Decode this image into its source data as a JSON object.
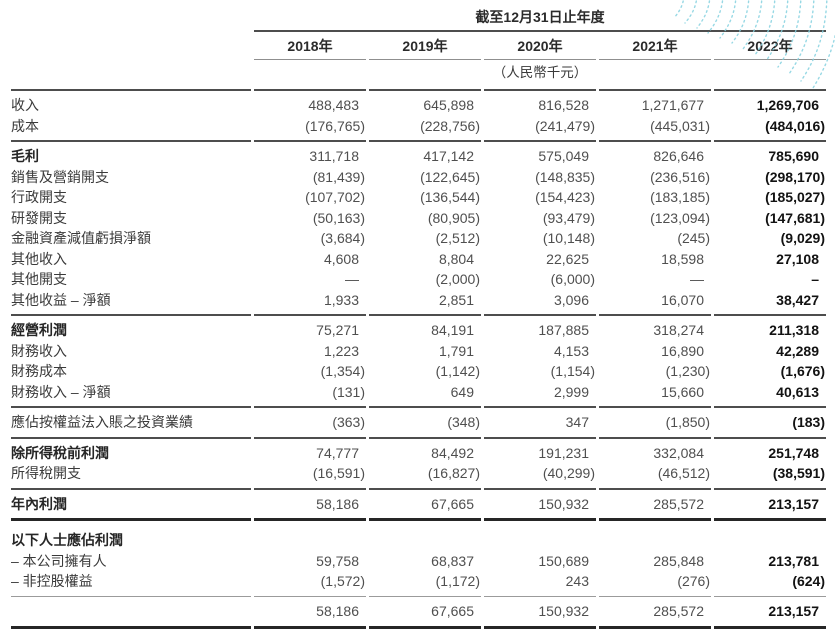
{
  "header": {
    "period_title": "截至12月31日止年度",
    "years": [
      "2018年",
      "2019年",
      "2020年",
      "2021年",
      "2022年"
    ],
    "unit_note": "（人民幣千元）"
  },
  "decoration": {
    "name": "dotted-swoosh-pattern",
    "color": "#85d2e0"
  },
  "table": {
    "rows": [
      {
        "label": "收入",
        "label_bold": false,
        "style": "rule-dark",
        "values": [
          "488,483",
          "645,898",
          "816,528",
          "1,271,677",
          "1,269,706"
        ]
      },
      {
        "label": "成本",
        "label_bold": false,
        "style": "pad-below",
        "values": [
          "(176,765)",
          "(228,756)",
          "(241,479)",
          "(445,031)",
          "(484,016)"
        ]
      },
      {
        "label": "毛利",
        "label_bold": true,
        "style": "rule-dark",
        "values": [
          "311,718",
          "417,142",
          "575,049",
          "826,646",
          "785,690"
        ]
      },
      {
        "label": "銷售及營銷開支",
        "label_bold": false,
        "style": "",
        "values": [
          "(81,439)",
          "(122,645)",
          "(148,835)",
          "(236,516)",
          "(298,170)"
        ]
      },
      {
        "label": "行政開支",
        "label_bold": false,
        "style": "",
        "values": [
          "(107,702)",
          "(136,544)",
          "(154,423)",
          "(183,185)",
          "(185,027)"
        ]
      },
      {
        "label": "研發開支",
        "label_bold": false,
        "style": "",
        "values": [
          "(50,163)",
          "(80,905)",
          "(93,479)",
          "(123,094)",
          "(147,681)"
        ]
      },
      {
        "label": "金融資產減值虧損淨額",
        "label_bold": false,
        "style": "",
        "values": [
          "(3,684)",
          "(2,512)",
          "(10,148)",
          "(245)",
          "(9,029)"
        ]
      },
      {
        "label": "其他收入",
        "label_bold": false,
        "style": "",
        "values": [
          "4,608",
          "8,804",
          "22,625",
          "18,598",
          "27,108"
        ]
      },
      {
        "label": "其他開支",
        "label_bold": false,
        "style": "",
        "values": [
          "—",
          "(2,000)",
          "(6,000)",
          "—",
          "–"
        ]
      },
      {
        "label": "其他收益 – 淨額",
        "label_bold": false,
        "style": "pad-below",
        "values": [
          "1,933",
          "2,851",
          "3,096",
          "16,070",
          "38,427"
        ]
      },
      {
        "label": "經營利潤",
        "label_bold": true,
        "style": "rule-dark",
        "values": [
          "75,271",
          "84,191",
          "187,885",
          "318,274",
          "211,318"
        ]
      },
      {
        "label": "財務收入",
        "label_bold": false,
        "style": "",
        "values": [
          "1,223",
          "1,791",
          "4,153",
          "16,890",
          "42,289"
        ]
      },
      {
        "label": "財務成本",
        "label_bold": false,
        "style": "",
        "values": [
          "(1,354)",
          "(1,142)",
          "(1,154)",
          "(1,230)",
          "(1,676)"
        ]
      },
      {
        "label": "財務收入 – 淨額",
        "label_bold": false,
        "style": "pad-below",
        "values": [
          "(131)",
          "649",
          "2,999",
          "15,660",
          "40,613"
        ]
      },
      {
        "label": "應佔按權益法入賬之投資業績",
        "label_bold": false,
        "style": "rule-dark pad-below",
        "values": [
          "(363)",
          "(348)",
          "347",
          "(1,850)",
          "(183)"
        ]
      },
      {
        "label": "除所得稅前利潤",
        "label_bold": true,
        "style": "rule-dark",
        "values": [
          "74,777",
          "84,492",
          "191,231",
          "332,084",
          "251,748"
        ]
      },
      {
        "label": "所得稅開支",
        "label_bold": false,
        "style": "pad-below",
        "values": [
          "(16,591)",
          "(16,827)",
          "(40,299)",
          "(46,512)",
          "(38,591)"
        ]
      },
      {
        "label": "年內利潤",
        "label_bold": true,
        "style": "rule-dark pad-below",
        "values": [
          "58,186",
          "67,665",
          "150,932",
          "285,572",
          "213,157"
        ]
      },
      {
        "label": "以下人士應佔利潤",
        "label_bold": true,
        "style": "rule-heavy",
        "values": [
          "",
          "",
          "",
          "",
          ""
        ]
      },
      {
        "label": "– 本公司擁有人",
        "label_bold": false,
        "style": "",
        "values": [
          "59,758",
          "68,837",
          "150,689",
          "285,848",
          "213,781"
        ]
      },
      {
        "label": "– 非控股權益",
        "label_bold": false,
        "style": "pad-below",
        "values": [
          "(1,572)",
          "(1,172)",
          "243",
          "(276)",
          "(624)"
        ]
      },
      {
        "label": "",
        "label_bold": false,
        "style": "rule-gray bottom-rule",
        "values": [
          "58,186",
          "67,665",
          "150,932",
          "285,572",
          "213,157"
        ]
      }
    ]
  }
}
